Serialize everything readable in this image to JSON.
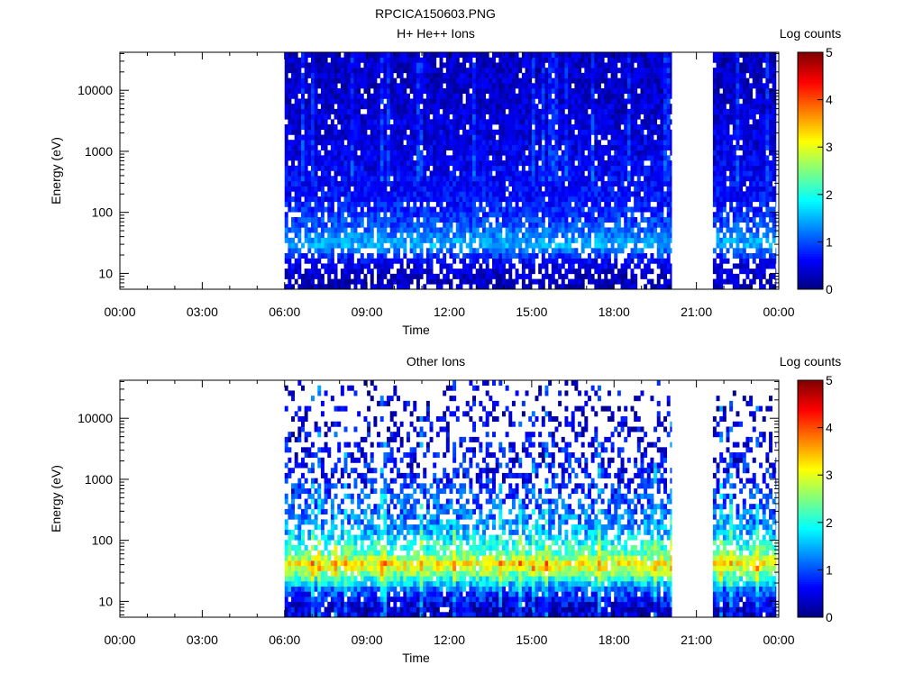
{
  "figure_title": "RPCICA150603.PNG",
  "chart_data": [
    {
      "type": "heatmap",
      "title": "H+ He++ Ions",
      "xlabel": "Time",
      "ylabel": "Energy (eV)",
      "colorbar_label": "Log counts",
      "x_ticks": [
        "00:00",
        "03:00",
        "06:00",
        "09:00",
        "12:00",
        "15:00",
        "18:00",
        "21:00",
        "00:00"
      ],
      "xlim_hours": [
        0,
        24
      ],
      "y_scale": "log",
      "y_ticks": [
        10,
        100,
        1000,
        10000
      ],
      "y_tick_labels": [
        "10",
        "100",
        "1000",
        "10000"
      ],
      "ylim": [
        5.5,
        42000
      ],
      "colorbar_ticks": [
        0,
        1,
        2,
        3,
        4,
        5
      ],
      "colorbar_range": [
        0,
        5
      ],
      "colormap": "jet",
      "data_intervals_hours": [
        [
          6.0,
          20.1
        ],
        [
          21.6,
          23.9
        ]
      ],
      "approx_profile_log_counts": [
        {
          "energy_eV": 8,
          "level": 0.3
        },
        {
          "energy_eV": 15,
          "level": 0.5
        },
        {
          "energy_eV": 30,
          "level": 1.5
        },
        {
          "energy_eV": 60,
          "level": 1.0
        },
        {
          "energy_eV": 150,
          "level": 0.7
        },
        {
          "energy_eV": 1000,
          "level": 0.5
        },
        {
          "energy_eV": 10000,
          "level": 0.35
        }
      ]
    },
    {
      "type": "heatmap",
      "title": "Other Ions",
      "xlabel": "Time",
      "ylabel": "Energy (eV)",
      "colorbar_label": "Log counts",
      "x_ticks": [
        "00:00",
        "03:00",
        "06:00",
        "09:00",
        "12:00",
        "15:00",
        "18:00",
        "21:00",
        "00:00"
      ],
      "xlim_hours": [
        0,
        24
      ],
      "y_scale": "log",
      "y_ticks": [
        10,
        100,
        1000,
        10000
      ],
      "y_tick_labels": [
        "10",
        "100",
        "1000",
        "10000"
      ],
      "ylim": [
        5.5,
        42000
      ],
      "colorbar_ticks": [
        0,
        1,
        2,
        3,
        4,
        5
      ],
      "colorbar_range": [
        0,
        5
      ],
      "colormap": "jet",
      "data_intervals_hours": [
        [
          6.0,
          20.1
        ],
        [
          21.6,
          23.9
        ]
      ],
      "approx_profile_log_counts": [
        {
          "energy_eV": 8,
          "level": 0.4
        },
        {
          "energy_eV": 15,
          "level": 1.0
        },
        {
          "energy_eV": 25,
          "level": 2.2
        },
        {
          "energy_eV": 40,
          "level": 3.2
        },
        {
          "energy_eV": 60,
          "level": 2.4
        },
        {
          "energy_eV": 150,
          "level": 1.4
        },
        {
          "energy_eV": 1000,
          "level": 0.7
        },
        {
          "energy_eV": 10000,
          "level": 0.4
        }
      ]
    }
  ]
}
